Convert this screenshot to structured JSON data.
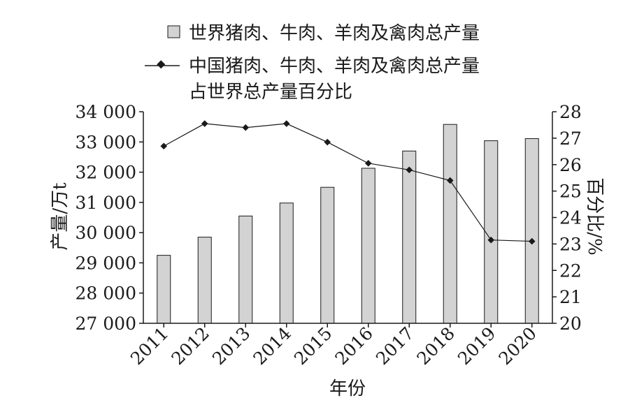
{
  "chart_data": {
    "type": "bar+line",
    "categories": [
      "2011",
      "2012",
      "2013",
      "2014",
      "2015",
      "2016",
      "2017",
      "2018",
      "2019",
      "2020"
    ],
    "bar_series": {
      "name": "世界猪肉、牛肉、羊肉及禽肉总产量",
      "axis": "left",
      "values": [
        29250,
        29850,
        30550,
        30980,
        31500,
        32130,
        32700,
        33580,
        33040,
        33110
      ],
      "color": "#d3d3d3"
    },
    "line_series": {
      "name_line1": "中国猪肉、牛肉、羊肉及禽肉总产量",
      "name_line2": "占世界总产量百分比",
      "axis": "right",
      "values": [
        26.7,
        27.55,
        27.4,
        27.55,
        26.85,
        26.05,
        25.8,
        25.4,
        23.15,
        23.1
      ],
      "color": "#1a1a1a"
    },
    "left_axis": {
      "label": "产量/万t",
      "ylim": [
        27000,
        34000
      ],
      "ticks": [
        27000,
        28000,
        29000,
        30000,
        31000,
        32000,
        33000,
        34000
      ],
      "tick_labels": [
        "27 000",
        "28 000",
        "29 000",
        "30 000",
        "31 000",
        "32 000",
        "33 000",
        "34 000"
      ]
    },
    "right_axis": {
      "label": "百分比/%",
      "ylim": [
        20,
        28
      ],
      "ticks": [
        20,
        21,
        22,
        23,
        24,
        25,
        26,
        27,
        28
      ],
      "tick_labels": [
        "20",
        "21",
        "22",
        "23",
        "24",
        "25",
        "26",
        "27",
        "28"
      ]
    },
    "xlabel": "年份",
    "grid": false,
    "legend_position": "top"
  }
}
